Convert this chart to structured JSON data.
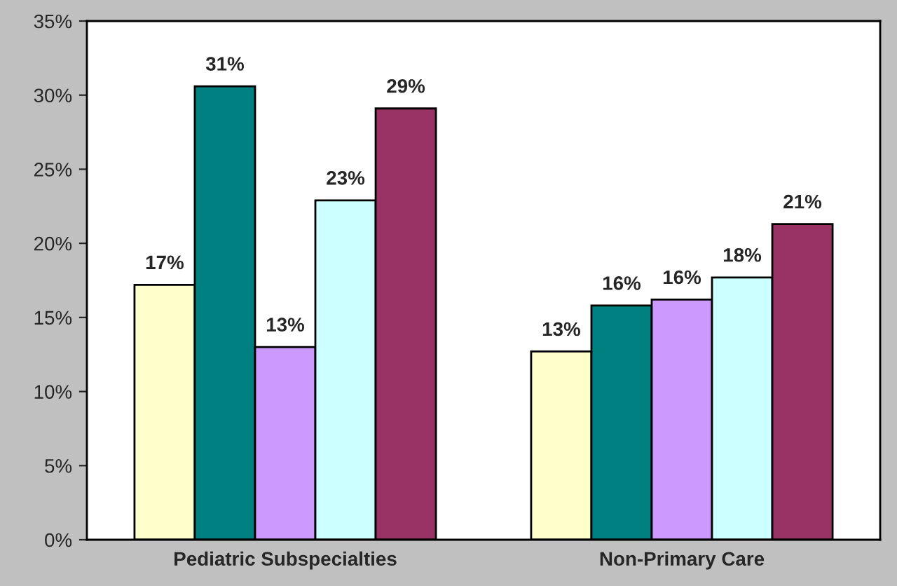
{
  "chart_data": {
    "type": "bar",
    "categories": [
      "Pediatric Subspecialties",
      "Non-Primary Care"
    ],
    "series": [
      {
        "color": "#ffffcc",
        "values": [
          17.2,
          12.7
        ],
        "value_labels": [
          "17%",
          "13%"
        ]
      },
      {
        "color": "#008080",
        "values": [
          30.6,
          15.8
        ],
        "value_labels": [
          "31%",
          "16%"
        ]
      },
      {
        "color": "#cc99ff",
        "values": [
          13.0,
          16.2
        ],
        "value_labels": [
          "13%",
          "16%"
        ]
      },
      {
        "color": "#ccffff",
        "values": [
          22.9,
          17.7
        ],
        "value_labels": [
          "23%",
          "18%"
        ]
      },
      {
        "color": "#993366",
        "values": [
          29.1,
          21.3
        ],
        "value_labels": [
          "29%",
          "21%"
        ]
      }
    ],
    "ylim": [
      0,
      35
    ],
    "yticks": [
      {
        "value": 0,
        "label": "0%"
      },
      {
        "value": 5,
        "label": "5%"
      },
      {
        "value": 10,
        "label": "10%"
      },
      {
        "value": 15,
        "label": "15%"
      },
      {
        "value": 20,
        "label": "20%"
      },
      {
        "value": 25,
        "label": "25%"
      },
      {
        "value": 30,
        "label": "30%"
      },
      {
        "value": 35,
        "label": "35%"
      }
    ],
    "grid": false
  }
}
